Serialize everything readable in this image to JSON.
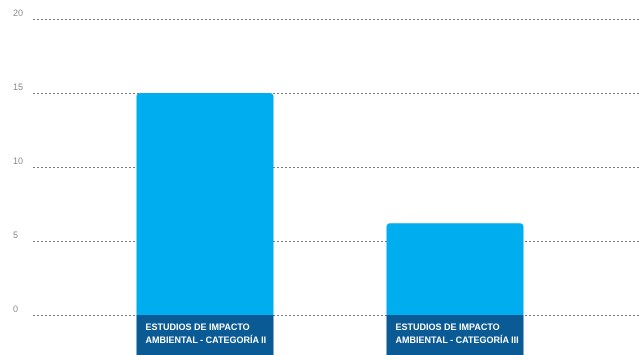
{
  "colors": {
    "bar": "#00adef",
    "label_band": "#0a5a96",
    "grid": "#7a7a7a",
    "tick_text": "#8a8a8a"
  },
  "chart_data": {
    "type": "bar",
    "categories": [
      [
        "ESTUDIOS DE IMPACTO",
        "AMBIENTAL - CATEGORÍA II"
      ],
      [
        "ESTUDIOS DE IMPACTO",
        "AMBIENTAL - CATEGORÍA III"
      ]
    ],
    "values": [
      15,
      6.2
    ],
    "ylim": [
      0,
      20
    ],
    "yticks": [
      "0",
      "5",
      "10",
      "15",
      "20"
    ],
    "grid": true,
    "grid_style": "dashed",
    "title": "",
    "xlabel": "",
    "ylabel": ""
  }
}
